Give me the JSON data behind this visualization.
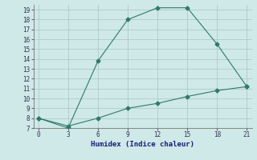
{
  "xlabel": "Humidex (Indice chaleur)",
  "bg_color": "#cfe8e8",
  "grid_color": "#b0c8c8",
  "line_color": "#2e7b6a",
  "line1_x": [
    0,
    3,
    6,
    9,
    12,
    15,
    18,
    21
  ],
  "line1_y": [
    8,
    7,
    13.8,
    18,
    19.2,
    19.2,
    15.5,
    11.2
  ],
  "line2_x": [
    0,
    3,
    6,
    9,
    12,
    15,
    18,
    21
  ],
  "line2_y": [
    8,
    7.2,
    8.0,
    9.0,
    9.5,
    10.2,
    10.8,
    11.2
  ],
  "xlim": [
    -0.5,
    21.5
  ],
  "ylim": [
    7,
    19.5
  ],
  "xticks": [
    0,
    3,
    6,
    9,
    12,
    15,
    18,
    21
  ],
  "yticks": [
    7,
    8,
    9,
    10,
    11,
    12,
    13,
    14,
    15,
    16,
    17,
    18,
    19
  ]
}
